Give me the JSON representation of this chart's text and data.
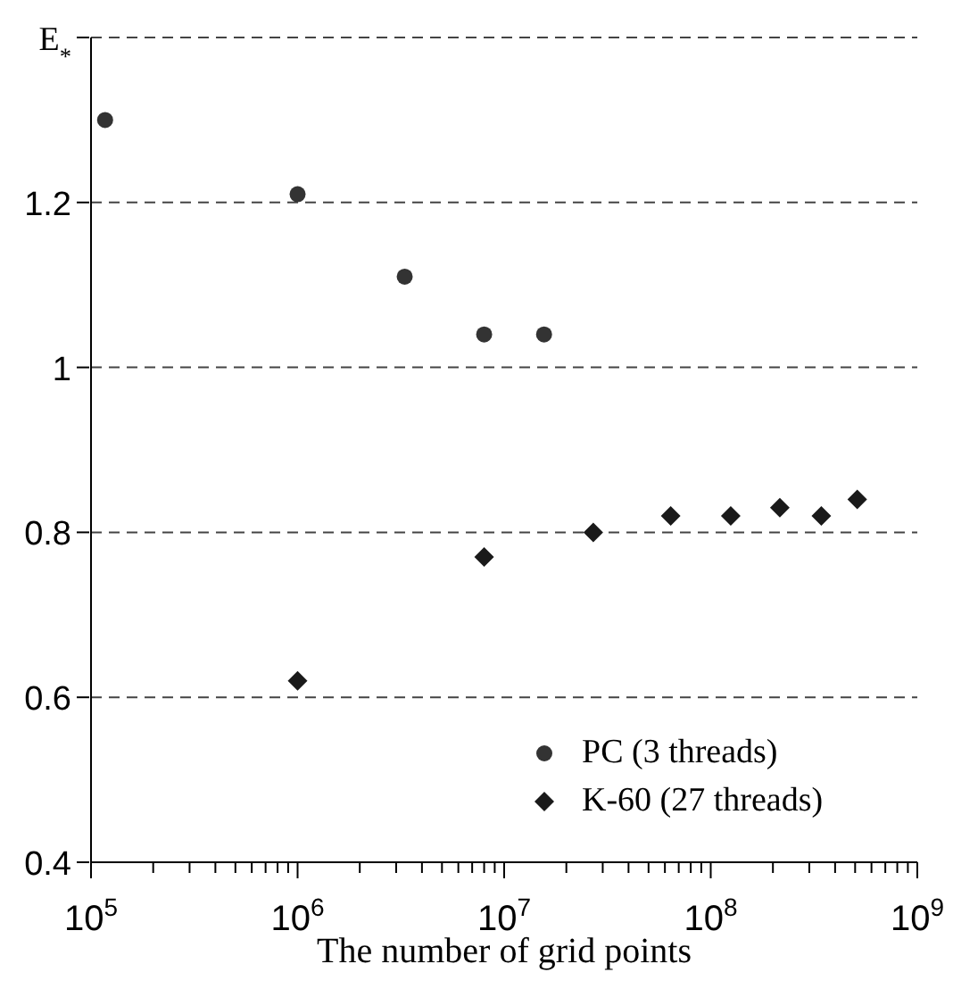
{
  "chart_data": {
    "type": "scatter",
    "xlabel": "The number of grid points",
    "log": "x",
    "xlim": [
      100000,
      1000000000
    ],
    "xticks": [
      {
        "value": 100000,
        "label": "10$^{5}$"
      },
      {
        "value": 200000,
        "label": null
      },
      {
        "value": 300000,
        "label": null
      },
      {
        "value": 400000,
        "label": null
      },
      {
        "value": 500000,
        "label": null
      },
      {
        "value": 600000,
        "label": null
      },
      {
        "value": 700000,
        "label": null
      },
      {
        "value": 800000,
        "label": null
      },
      {
        "value": 900000,
        "label": null
      },
      {
        "value": 1000000,
        "label": "10$^{6}$"
      },
      {
        "value": 2000000,
        "label": null
      },
      {
        "value": 3000000,
        "label": null
      },
      {
        "value": 4000000,
        "label": null
      },
      {
        "value": 5000000,
        "label": null
      },
      {
        "value": 6000000,
        "label": null
      },
      {
        "value": 7000000,
        "label": null
      },
      {
        "value": 8000000,
        "label": null
      },
      {
        "value": 9000000,
        "label": null
      },
      {
        "value": 10000000,
        "label": "10$^{7}$"
      },
      {
        "value": 20000000,
        "label": null
      },
      {
        "value": 30000000,
        "label": null
      },
      {
        "value": 40000000,
        "label": null
      },
      {
        "value": 50000000,
        "label": null
      },
      {
        "value": 60000000,
        "label": null
      },
      {
        "value": 70000000,
        "label": null
      },
      {
        "value": 80000000,
        "label": null
      },
      {
        "value": 90000000,
        "label": null
      },
      {
        "value": 100000000,
        "label": "10$^{8}$"
      },
      {
        "value": 200000000,
        "label": null
      },
      {
        "value": 300000000,
        "label": null
      },
      {
        "value": 400000000,
        "label": null
      },
      {
        "value": 500000000,
        "label": null
      },
      {
        "value": 600000000,
        "label": null
      },
      {
        "value": 700000000,
        "label": null
      },
      {
        "value": 800000000,
        "label": null
      },
      {
        "value": 900000000,
        "label": null
      },
      {
        "value": 1000000000,
        "label": "10$^{9}$"
      }
    ],
    "ylim": [
      0.4,
      1.4
    ],
    "yticks": [
      0.4,
      0.6,
      0.8,
      1,
      1.2,
      {
        "value": 1.4,
        "label": "E$_{*}$"
      }
    ],
    "grid": "y",
    "line_style": "dashed",
    "legend": "bottom right",
    "series": [
      {
        "name": "PC (3 threads)",
        "color": "#333333",
        "marker": "circle",
        "x": [
          117000,
          1000000,
          3300000,
          8000000,
          15600000
        ],
        "values": [
          1.3,
          1.21,
          1.11,
          1.04,
          1.04
        ]
      },
      {
        "name": "K-60 (27 threads)",
        "color": "#1a1a1a",
        "marker": "diamond",
        "x": [
          1000000,
          8000000,
          27000000,
          64000000,
          125000000,
          216000000,
          343000000,
          512000000
        ],
        "values": [
          0.62,
          0.77,
          0.8,
          0.82,
          0.82,
          0.83,
          0.82,
          0.84
        ]
      }
    ]
  }
}
